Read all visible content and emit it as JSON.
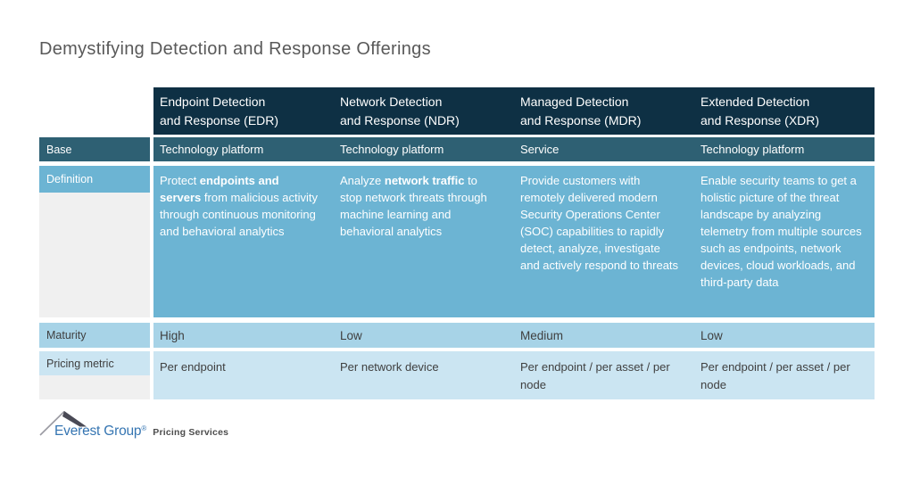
{
  "page": {
    "title": "Demystifying Detection and Response Offerings"
  },
  "table": {
    "row_labels": {
      "base": "Base",
      "definition": "Definition",
      "maturity": "Maturity",
      "pricing": "Pricing metric"
    },
    "columns": [
      {
        "id": "edr",
        "header_lines": [
          "Endpoint Detection",
          "and Response (EDR)"
        ],
        "base": "Technology platform",
        "definition_segments": [
          {
            "t": "Protect ",
            "b": false
          },
          {
            "t": "endpoints and servers",
            "b": true
          },
          {
            "t": " from malicious activity through continuous monitoring and behavioral analytics",
            "b": false
          }
        ],
        "maturity": "High",
        "pricing": "Per endpoint"
      },
      {
        "id": "ndr",
        "header_lines": [
          "Network Detection",
          "and Response (NDR)"
        ],
        "base": "Technology platform",
        "definition_segments": [
          {
            "t": "Analyze ",
            "b": false
          },
          {
            "t": "network traffic",
            "b": true
          },
          {
            "t": " to stop network threats through machine learning and behavioral analytics",
            "b": false
          }
        ],
        "maturity": "Low",
        "pricing": "Per network device"
      },
      {
        "id": "mdr",
        "header_lines": [
          "Managed Detection",
          "and Response (MDR)"
        ],
        "base": "Service",
        "definition_segments": [
          {
            "t": "Provide customers with remotely delivered modern Security Operations Center (SOC) capabilities to rapidly detect, analyze, investigate and actively respond to threats",
            "b": false
          }
        ],
        "maturity": "Medium",
        "pricing": "Per endpoint / per asset / per node"
      },
      {
        "id": "xdr",
        "header_lines": [
          "Extended Detection",
          "and Response (XDR)"
        ],
        "base": "Technology platform",
        "definition_segments": [
          {
            "t": "Enable security teams to get a holistic picture of the threat landscape by analyzing telemetry from multiple sources such as endpoints, network devices, cloud workloads, and third-party data",
            "b": false
          }
        ],
        "maturity": "Low",
        "pricing": "Per endpoint / per asset / per node"
      }
    ]
  },
  "footer": {
    "brand": "Everest Group",
    "registered_mark": "®",
    "tagline": "Pricing Services"
  },
  "colors": {
    "header_bg": "#0E3044",
    "base_bg": "#2E6073",
    "definition_bg": "#6CB4D3",
    "maturity_bg": "#A7D3E7",
    "pricing_bg": "#CBE5F2",
    "label_gray_bg": "#F0F0F0",
    "dark_text": "#3F3F3F",
    "title_text": "#595959",
    "brand_blue": "#3575B2",
    "logo_dark": "#4A4A55",
    "logo_light": "#9A9AA2"
  }
}
